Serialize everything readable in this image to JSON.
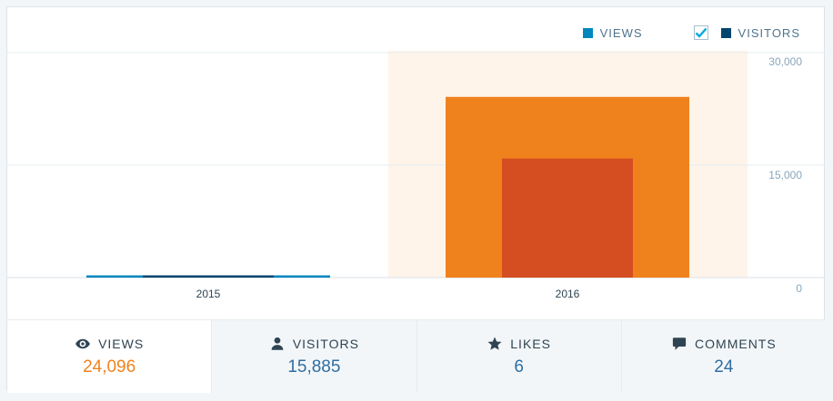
{
  "legend": {
    "views_label": "VIEWS",
    "visitors_label": "VISITORS",
    "views_color": "#0087be",
    "visitors_color": "#00456e",
    "visitors_checked": true
  },
  "chart_data": {
    "type": "bar",
    "categories": [
      "2015",
      "2016"
    ],
    "series": [
      {
        "name": "VIEWS",
        "values": [
          300,
          24096
        ],
        "color": "#0087be",
        "highlight_color": "#f0821e"
      },
      {
        "name": "VISITORS",
        "values": [
          200,
          15885
        ],
        "color": "#00456e",
        "highlight_color": "#d54e21"
      }
    ],
    "y_ticks": [
      "30,000",
      "15,000",
      "0"
    ],
    "ylim": [
      0,
      30000
    ],
    "highlighted_category": "2016",
    "grid": true
  },
  "tabs": [
    {
      "label": "VIEWS",
      "value": "24,096",
      "icon": "eye-icon",
      "active": true
    },
    {
      "label": "VISITORS",
      "value": "15,885",
      "icon": "user-icon",
      "active": false
    },
    {
      "label": "LIKES",
      "value": "6",
      "icon": "star-icon",
      "active": false
    },
    {
      "label": "COMMENTS",
      "value": "24",
      "icon": "comment-icon",
      "active": false
    }
  ]
}
